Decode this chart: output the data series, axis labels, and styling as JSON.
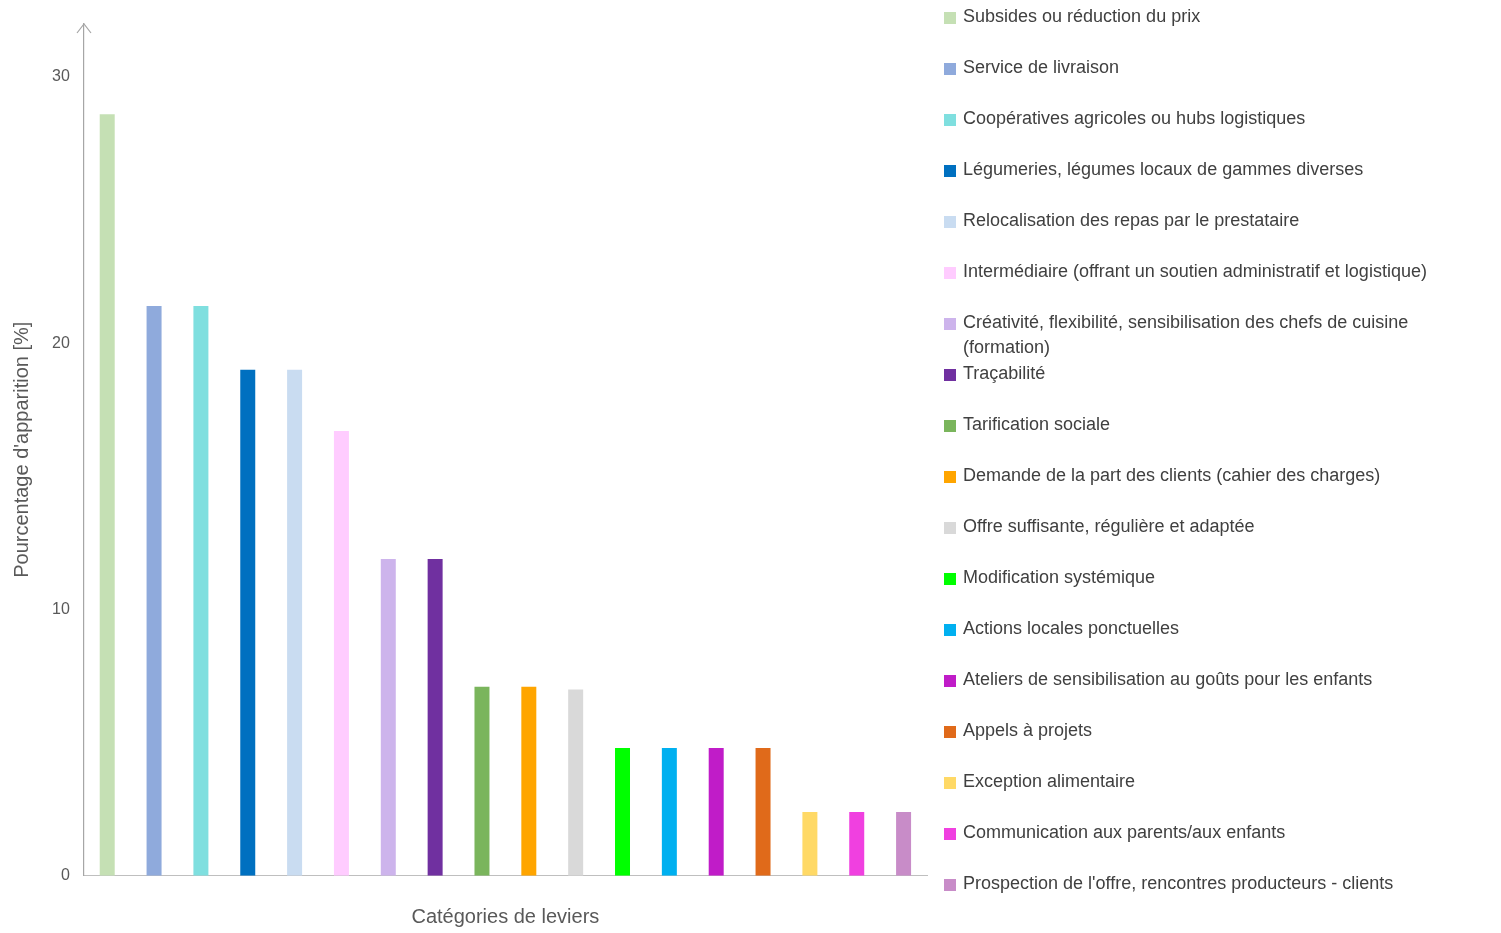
{
  "chart_data": {
    "type": "bar",
    "xlabel": "Catégories de leviers",
    "ylabel": "Pourcentage d'apparition [%]",
    "categories": [
      null,
      null,
      null,
      null,
      null,
      null,
      null,
      null,
      null,
      null,
      null,
      null,
      null,
      null,
      null,
      null,
      null,
      null
    ],
    "ylim": [
      0,
      32
    ],
    "yticks": [
      0,
      10,
      20,
      30
    ],
    "grid": false,
    "legend": "right",
    "series": [
      {
        "name": "Subsides ou réduction du prix",
        "color": "#c5e0b4",
        "values": [
          28.6,
          null,
          null,
          null,
          null,
          null,
          null,
          null,
          null,
          null,
          null,
          null,
          null,
          null,
          null,
          null,
          null,
          null
        ]
      },
      {
        "name": "Service de livraison",
        "color": "#8faadc",
        "values": [
          null,
          21.4,
          null,
          null,
          null,
          null,
          null,
          null,
          null,
          null,
          null,
          null,
          null,
          null,
          null,
          null,
          null,
          null
        ]
      },
      {
        "name": "Coopératives  agricoles ou hubs logistiques",
        "color": "#7fdfdf",
        "values": [
          null,
          null,
          21.4,
          null,
          null,
          null,
          null,
          null,
          null,
          null,
          null,
          null,
          null,
          null,
          null,
          null,
          null,
          null
        ]
      },
      {
        "name": "Légumeries, légumes locaux de gammes diverses",
        "color": "#0070c0",
        "values": [
          null,
          null,
          null,
          19.0,
          null,
          null,
          null,
          null,
          null,
          null,
          null,
          null,
          null,
          null,
          null,
          null,
          null,
          null
        ]
      },
      {
        "name": "Relocalisation des repas par le prestataire",
        "color": "#c9dcf1",
        "values": [
          null,
          null,
          null,
          null,
          19.0,
          null,
          null,
          null,
          null,
          null,
          null,
          null,
          null,
          null,
          null,
          null,
          null,
          null
        ]
      },
      {
        "name": "Intermédiaire (offrant un soutien administratif et logistique)",
        "color": "#ffccff",
        "values": [
          null,
          null,
          null,
          null,
          null,
          16.7,
          null,
          null,
          null,
          null,
          null,
          null,
          null,
          null,
          null,
          null,
          null,
          null
        ]
      },
      {
        "name": "Créativité, flexibilité, sensibilisation des chefs de cuisine (formation)",
        "color": "#cdb4ec",
        "values": [
          null,
          null,
          null,
          null,
          null,
          null,
          11.9,
          null,
          null,
          null,
          null,
          null,
          null,
          null,
          null,
          null,
          null,
          null
        ]
      },
      {
        "name": "Traçabilité",
        "color": "#7030a0",
        "values": [
          null,
          null,
          null,
          null,
          null,
          null,
          null,
          11.9,
          null,
          null,
          null,
          null,
          null,
          null,
          null,
          null,
          null,
          null
        ]
      },
      {
        "name": "Tarification sociale",
        "color": "#7ab55c",
        "values": [
          null,
          null,
          null,
          null,
          null,
          null,
          null,
          null,
          7.1,
          null,
          null,
          null,
          null,
          null,
          null,
          null,
          null,
          null
        ]
      },
      {
        "name": "Demande de la part des clients (cahier des charges)",
        "color": "#ffa500",
        "values": [
          null,
          null,
          null,
          null,
          null,
          null,
          null,
          null,
          null,
          7.1,
          null,
          null,
          null,
          null,
          null,
          null,
          null,
          null
        ]
      },
      {
        "name": "Offre suffisante, régulière et adaptée",
        "color": "#d9d9d9",
        "values": [
          null,
          null,
          null,
          null,
          null,
          null,
          null,
          null,
          null,
          null,
          7.0,
          null,
          null,
          null,
          null,
          null,
          null,
          null
        ]
      },
      {
        "name": "Modification systémique",
        "color": "#00ff00",
        "values": [
          null,
          null,
          null,
          null,
          null,
          null,
          null,
          null,
          null,
          null,
          null,
          4.8,
          null,
          null,
          null,
          null,
          null,
          null
        ]
      },
      {
        "name": "Actions locales ponctuelles",
        "color": "#00b0f0",
        "values": [
          null,
          null,
          null,
          null,
          null,
          null,
          null,
          null,
          null,
          null,
          null,
          null,
          4.8,
          null,
          null,
          null,
          null,
          null
        ]
      },
      {
        "name": "Ateliers de sensibilisation au goûts pour les enfants",
        "color": "#c01cc8",
        "values": [
          null,
          null,
          null,
          null,
          null,
          null,
          null,
          null,
          null,
          null,
          null,
          null,
          null,
          4.8,
          null,
          null,
          null,
          null
        ]
      },
      {
        "name": "Appels à projets",
        "color": "#e06a1a",
        "values": [
          null,
          null,
          null,
          null,
          null,
          null,
          null,
          null,
          null,
          null,
          null,
          null,
          null,
          null,
          4.8,
          null,
          null,
          null
        ]
      },
      {
        "name": "Exception alimentaire",
        "color": "#ffd966",
        "values": [
          null,
          null,
          null,
          null,
          null,
          null,
          null,
          null,
          null,
          null,
          null,
          null,
          null,
          null,
          null,
          2.4,
          null,
          null
        ]
      },
      {
        "name": "Communication aux parents/aux enfants",
        "color": "#f040e0",
        "values": [
          null,
          null,
          null,
          null,
          null,
          null,
          null,
          null,
          null,
          null,
          null,
          null,
          null,
          null,
          null,
          null,
          2.4,
          null
        ]
      },
      {
        "name": "Prospection de l'offre, rencontres producteurs - clients",
        "color": "#c88cc8",
        "values": [
          null,
          null,
          null,
          null,
          null,
          null,
          null,
          null,
          null,
          null,
          null,
          null,
          null,
          null,
          null,
          null,
          null,
          2.4
        ]
      }
    ]
  }
}
